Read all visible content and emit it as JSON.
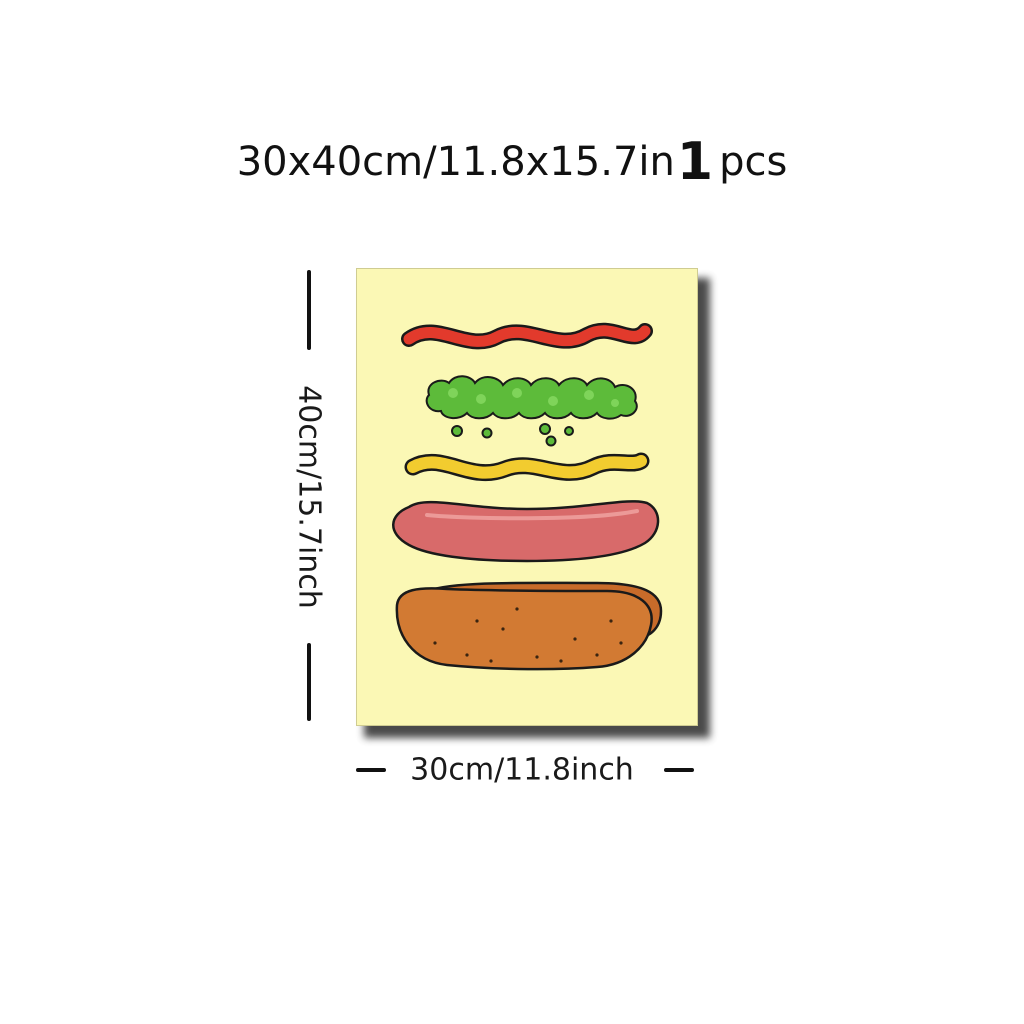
{
  "header": {
    "size_text": "30x40cm/11.8x15.7in",
    "quantity_number": "1",
    "quantity_unit": "pcs"
  },
  "dimensions": {
    "height_label": "40cm/15.7inch",
    "width_label": "30cm/11.8inch"
  },
  "artwork": {
    "background_color": "#fbf8b5",
    "layers": [
      "ketchup",
      "relish",
      "mustard",
      "sausage",
      "bun"
    ],
    "colors": {
      "ketchup": "#e23a2c",
      "relish": "#5dbb3a",
      "mustard": "#f2cc2f",
      "sausage": "#d86a6a",
      "bun": "#d27a33"
    }
  }
}
